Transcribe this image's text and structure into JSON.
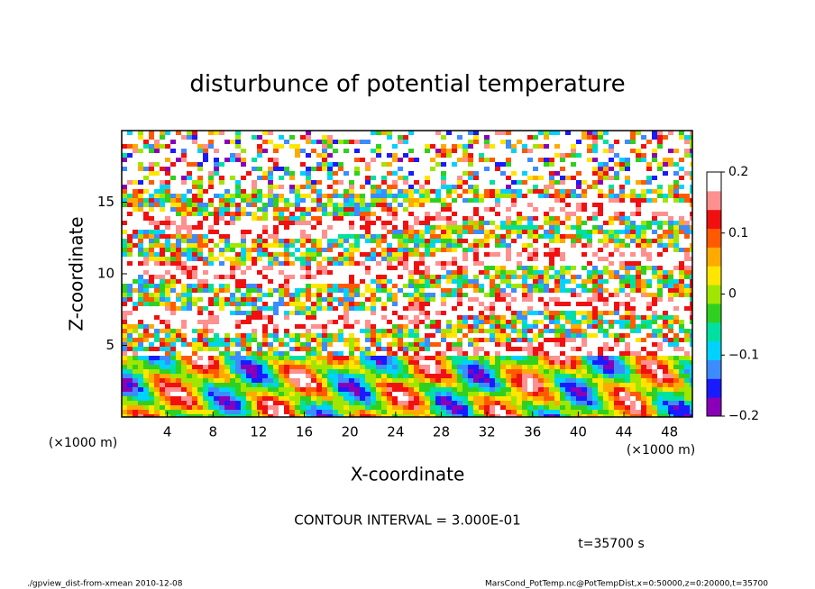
{
  "chart_data": {
    "type": "contour",
    "title": "disturbunce of potential temperature",
    "x_label": "X-coordinate",
    "y_label": "Z-coordinate",
    "x_unit": "(×1000 m)",
    "y_unit": "(×1000 m)",
    "xlim": [
      0,
      50
    ],
    "xticks": [
      4,
      8,
      12,
      16,
      20,
      24,
      28,
      32,
      36,
      40,
      44,
      48
    ],
    "ylim": [
      0,
      20
    ],
    "yticks": [
      5,
      10,
      15
    ],
    "clim": [
      -0.2,
      0.2
    ],
    "cticks": [
      {
        "value": 0.2,
        "label": "0.2"
      },
      {
        "value": 0.1,
        "label": "0.1"
      },
      0,
      {
        "value": -0.1,
        "label": "−0.1"
      },
      {
        "value": -0.2,
        "label": "−0.2"
      }
    ],
    "colors": [
      "#8a00b8",
      "#1a1aff",
      "#3c8cff",
      "#00d2ff",
      "#00e0a0",
      "#30d020",
      "#a0e600",
      "#ffe600",
      "#ffaa00",
      "#ff5a00",
      "#f01010",
      "#ff9090",
      "#ffffff"
    ],
    "contour_interval": "CONTOUR INTERVAL = 3.000E-01",
    "time": "t=35700 s",
    "footer_left": "./gpview_dist-from-xmean  2010-12-08",
    "footer_right": "MarsCond_PotTemp.nc@PotTempDist,x=0:50000,z=0:20000,t=35700"
  }
}
